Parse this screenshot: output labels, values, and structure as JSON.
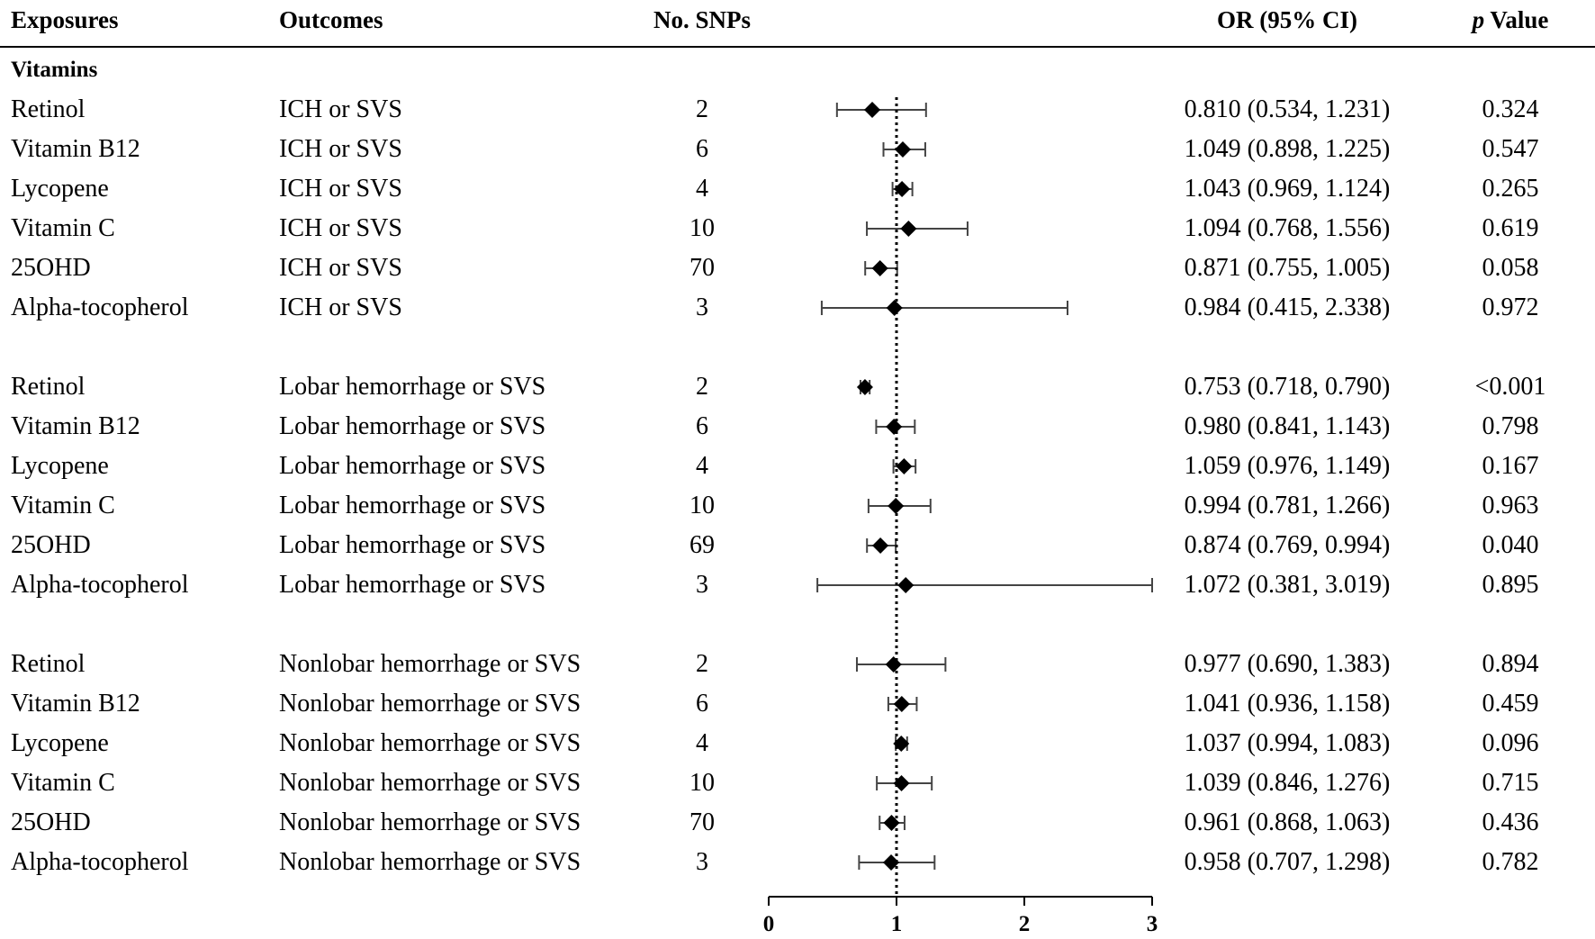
{
  "chart_data": {
    "type": "forest",
    "headers": {
      "exposures": "Exposures",
      "outcomes": "Outcomes",
      "snps": "No. SNPs",
      "or": "OR (95% CI)",
      "p_italic": "p",
      "p_rest": " Value"
    },
    "section_title": "Vitamins",
    "x_ticks": [
      "0",
      "1",
      "2",
      "3"
    ],
    "xlim": [
      0,
      3
    ],
    "reference_line": 1,
    "rows": [
      {
        "exposure": "Retinol",
        "outcome": "ICH or SVS",
        "snps": "2",
        "or": 0.81,
        "lo": 0.534,
        "hi": 1.231,
        "or_text": "0.810 (0.534, 1.231)",
        "p": "0.324"
      },
      {
        "exposure": "Vitamin B12",
        "outcome": "ICH or SVS",
        "snps": "6",
        "or": 1.049,
        "lo": 0.898,
        "hi": 1.225,
        "or_text": "1.049 (0.898, 1.225)",
        "p": "0.547"
      },
      {
        "exposure": "Lycopene",
        "outcome": "ICH or SVS",
        "snps": "4",
        "or": 1.043,
        "lo": 0.969,
        "hi": 1.124,
        "or_text": "1.043 (0.969, 1.124)",
        "p": "0.265"
      },
      {
        "exposure": "Vitamin C",
        "outcome": "ICH or SVS",
        "snps": "10",
        "or": 1.094,
        "lo": 0.768,
        "hi": 1.556,
        "or_text": "1.094 (0.768, 1.556)",
        "p": "0.619"
      },
      {
        "exposure": "25OHD",
        "outcome": "ICH or SVS",
        "snps": "70",
        "or": 0.871,
        "lo": 0.755,
        "hi": 1.005,
        "or_text": "0.871 (0.755, 1.005)",
        "p": "0.058"
      },
      {
        "exposure": "Alpha-tocopherol",
        "outcome": "ICH or SVS",
        "snps": "3",
        "or": 0.984,
        "lo": 0.415,
        "hi": 2.338,
        "or_text": "0.984 (0.415, 2.338)",
        "p": "0.972"
      },
      {
        "exposure": "Retinol",
        "outcome": "Lobar hemorrhage or SVS",
        "snps": "2",
        "or": 0.753,
        "lo": 0.718,
        "hi": 0.79,
        "or_text": "0.753 (0.718, 0.790)",
        "p": "<0.001"
      },
      {
        "exposure": "Vitamin B12",
        "outcome": "Lobar hemorrhage or SVS",
        "snps": "6",
        "or": 0.98,
        "lo": 0.841,
        "hi": 1.143,
        "or_text": "0.980 (0.841, 1.143)",
        "p": "0.798"
      },
      {
        "exposure": "Lycopene",
        "outcome": "Lobar hemorrhage or SVS",
        "snps": "4",
        "or": 1.059,
        "lo": 0.976,
        "hi": 1.149,
        "or_text": "1.059 (0.976, 1.149)",
        "p": "0.167"
      },
      {
        "exposure": "Vitamin C",
        "outcome": "Lobar hemorrhage or SVS",
        "snps": "10",
        "or": 0.994,
        "lo": 0.781,
        "hi": 1.266,
        "or_text": "0.994 (0.781, 1.266)",
        "p": "0.963"
      },
      {
        "exposure": "25OHD",
        "outcome": "Lobar hemorrhage or SVS",
        "snps": "69",
        "or": 0.874,
        "lo": 0.769,
        "hi": 0.994,
        "or_text": "0.874 (0.769, 0.994)",
        "p": "0.040"
      },
      {
        "exposure": "Alpha-tocopherol",
        "outcome": "Lobar hemorrhage or SVS",
        "snps": "3",
        "or": 1.072,
        "lo": 0.381,
        "hi": 3.019,
        "or_text": "1.072 (0.381, 3.019)",
        "p": "0.895"
      },
      {
        "exposure": "Retinol",
        "outcome": "Nonlobar hemorrhage or SVS",
        "snps": "2",
        "or": 0.977,
        "lo": 0.69,
        "hi": 1.383,
        "or_text": "0.977 (0.690, 1.383)",
        "p": "0.894"
      },
      {
        "exposure": "Vitamin B12",
        "outcome": "Nonlobar hemorrhage or SVS",
        "snps": "6",
        "or": 1.041,
        "lo": 0.936,
        "hi": 1.158,
        "or_text": "1.041 (0.936, 1.158)",
        "p": "0.459"
      },
      {
        "exposure": "Lycopene",
        "outcome": "Nonlobar hemorrhage or SVS",
        "snps": "4",
        "or": 1.037,
        "lo": 0.994,
        "hi": 1.083,
        "or_text": "1.037 (0.994, 1.083)",
        "p": "0.096"
      },
      {
        "exposure": "Vitamin C",
        "outcome": "Nonlobar hemorrhage or SVS",
        "snps": "10",
        "or": 1.039,
        "lo": 0.846,
        "hi": 1.276,
        "or_text": "1.039 (0.846, 1.276)",
        "p": "0.715"
      },
      {
        "exposure": "25OHD",
        "outcome": "Nonlobar hemorrhage or SVS",
        "snps": "70",
        "or": 0.961,
        "lo": 0.868,
        "hi": 1.063,
        "or_text": "0.961 (0.868, 1.063)",
        "p": "0.436"
      },
      {
        "exposure": "Alpha-tocopherol",
        "outcome": "Nonlobar hemorrhage or SVS",
        "snps": "3",
        "or": 0.958,
        "lo": 0.707,
        "hi": 1.298,
        "or_text": "0.958 (0.707, 1.298)",
        "p": "0.782"
      }
    ]
  }
}
